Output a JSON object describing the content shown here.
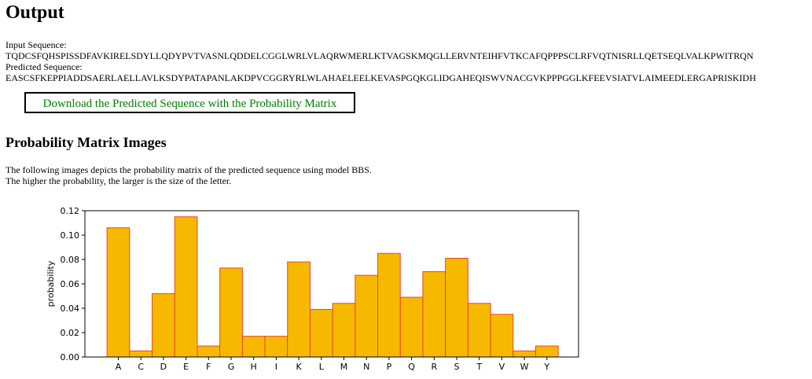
{
  "page": {
    "title": "Output"
  },
  "sequences": {
    "input_label": "Input Sequence:",
    "input_value": "TQDCSFQHSPISSDFAVKIRELSDYLLQDYPVTVASNLQDDELCGGLWRLVLAQRWMERLKTVAGSKMQGLLERVNTEIHFVTKCAFQPPPSCLRFVQTNISRLLQETSEQLVALKPWITRQN",
    "predicted_label": "Predicted Sequence:",
    "predicted_value": "EASCSFKEPPIADDSAERLAELLAVLKSDYPATAPANLAKDPVCGGRYRLWLAHAELEELKEVASPGQKGLIDGAHEQISWVNACGVKPPPGGLKFEEVSIATVLAIMEEDLERGAPRISKIDH"
  },
  "download": {
    "label": "Download the Predicted Sequence with the Probability Matrix"
  },
  "matrix_section": {
    "title": "Probability Matrix Images",
    "line1": "The following images depicts the probability matrix of the predicted sequence using model BBS.",
    "line2": "The higher the probability, the larger is the size of the letter."
  },
  "chart_data": {
    "type": "bar",
    "title": "",
    "xlabel": "",
    "ylabel": "probability",
    "categories": [
      "A",
      "C",
      "D",
      "E",
      "F",
      "G",
      "H",
      "I",
      "K",
      "L",
      "M",
      "N",
      "P",
      "Q",
      "R",
      "S",
      "T",
      "V",
      "W",
      "Y"
    ],
    "values": [
      0.106,
      0.005,
      0.052,
      0.115,
      0.009,
      0.073,
      0.017,
      0.017,
      0.078,
      0.039,
      0.044,
      0.067,
      0.085,
      0.049,
      0.07,
      0.081,
      0.044,
      0.035,
      0.005,
      0.009
    ],
    "ylim": [
      0,
      0.12
    ],
    "yticks": [
      "0.00",
      "0.02",
      "0.04",
      "0.06",
      "0.08",
      "0.10",
      "0.12"
    ],
    "grid": false,
    "colors": {
      "bar_fill": "#f7b900",
      "bar_edge": "#e8452c",
      "axis": "#000000"
    }
  }
}
